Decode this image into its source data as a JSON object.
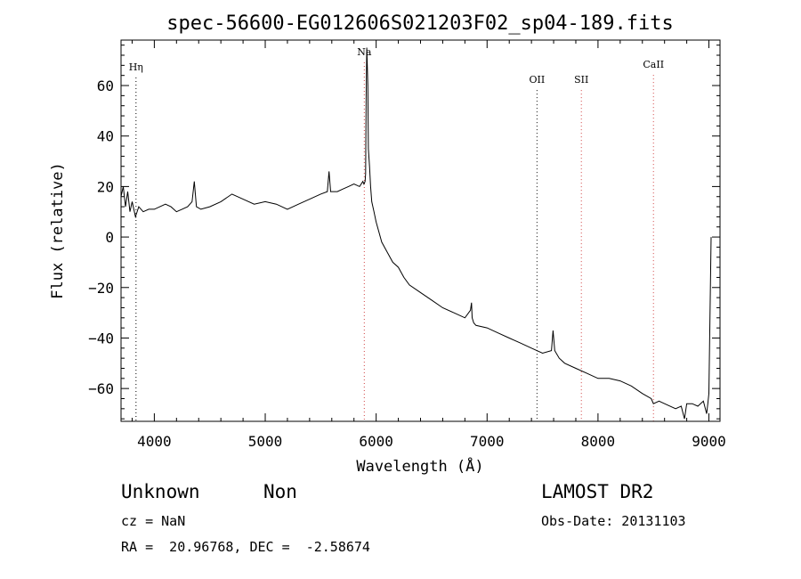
{
  "chart_data": {
    "type": "line",
    "title": "spec-56600-EG012606S021203F02_sp04-189.fits",
    "xlabel": "Wavelength (Å)",
    "ylabel": "Flux (relative)",
    "xlim": [
      3700,
      9100
    ],
    "ylim": [
      -73,
      78
    ],
    "x_ticks": [
      4000,
      5000,
      6000,
      7000,
      8000,
      9000
    ],
    "y_ticks": [
      -60,
      -40,
      -20,
      0,
      20,
      40,
      60
    ],
    "grid": false,
    "series": [
      {
        "x": [
          3700,
          3720,
          3740,
          3760,
          3780,
          3800,
          3830,
          3860,
          3900,
          3950,
          4000,
          4050,
          4100,
          4150,
          4200,
          4250,
          4300,
          4340,
          4360,
          4380,
          4420,
          4500,
          4600,
          4700,
          4800,
          4900,
          5000,
          5100,
          5200,
          5300,
          5400,
          5500,
          5560,
          5575,
          5590,
          5650,
          5700,
          5750,
          5800,
          5850,
          5880,
          5890,
          5900,
          5905,
          5910,
          5915,
          5920,
          5925,
          5930,
          5940,
          5950,
          5960,
          5980,
          6000,
          6050,
          6100,
          6150,
          6200,
          6250,
          6300,
          6400,
          6500,
          6600,
          6700,
          6800,
          6850,
          6860,
          6865,
          6880,
          6900,
          7000,
          7100,
          7200,
          7300,
          7400,
          7500,
          7580,
          7595,
          7610,
          7650,
          7700,
          7800,
          7900,
          8000,
          8100,
          8200,
          8300,
          8400,
          8480,
          8500,
          8550,
          8600,
          8700,
          8750,
          8780,
          8800,
          8850,
          8900,
          8950,
          8980,
          8990,
          9000,
          9020
        ],
        "y": [
          16,
          20,
          12,
          18,
          10,
          14,
          8,
          12,
          10,
          11,
          11,
          12,
          13,
          12,
          10,
          11,
          12,
          14,
          22,
          12,
          11,
          12,
          14,
          17,
          15,
          13,
          14,
          13,
          11,
          13,
          15,
          17,
          18,
          26,
          18,
          18,
          19,
          20,
          21,
          20,
          22,
          21,
          22,
          25,
          55,
          75,
          68,
          60,
          35,
          28,
          20,
          14,
          10,
          6,
          -2,
          -6,
          -10,
          -12,
          -16,
          -19,
          -22,
          -25,
          -28,
          -30,
          -32,
          -29,
          -26,
          -32,
          -34,
          -35,
          -36,
          -38,
          -40,
          -42,
          -44,
          -46,
          -45,
          -37,
          -45,
          -48,
          -50,
          -52,
          -54,
          -56,
          -56,
          -57,
          -59,
          -62,
          -64,
          -66,
          -65,
          -66,
          -68,
          -67,
          -72,
          -66,
          -66,
          -67,
          -65,
          -70,
          -66,
          -62,
          0
        ]
      }
    ],
    "annotations": [
      {
        "label": "Hη",
        "x": 3835,
        "y": 66,
        "line": "black"
      },
      {
        "label": "Na",
        "x": 5893,
        "y": 72,
        "line": "red"
      },
      {
        "label": "OII",
        "x": 7450,
        "y": 61,
        "line": "black"
      },
      {
        "label": "SII",
        "x": 7850,
        "y": 61,
        "line": "red"
      },
      {
        "label": "CaII",
        "x": 8500,
        "y": 67,
        "line": "red"
      }
    ]
  },
  "footer": {
    "object_class": "Unknown",
    "subclass": "Non",
    "cz": "cz = NaN",
    "coords": "RA =  20.96768, DEC =  -2.58674",
    "survey": "LAMOST DR2",
    "obs_date": "Obs-Date: 20131103"
  }
}
